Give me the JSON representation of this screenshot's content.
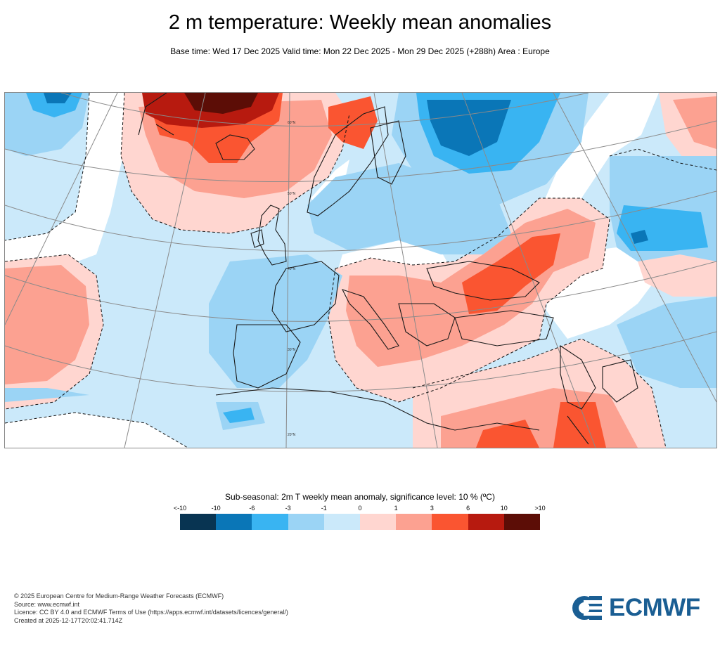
{
  "title": "2 m temperature: Weekly mean anomalies",
  "subtitle": "Base time: Wed 17 Dec 2025 Valid time: Mon 22 Dec 2025 - Mon 29 Dec 2025 (+288h) Area : Europe",
  "map": {
    "graticule_labels": [
      "60°N",
      "50°N",
      "40°N",
      "30°N",
      "20°N"
    ]
  },
  "legend": {
    "title": "Sub-seasonal: 2m T weekly mean anomaly, significance level: 10 % (ºC)",
    "labels": [
      "<-10",
      "-10",
      "-6",
      "-3",
      "-1",
      "0",
      "1",
      "3",
      "6",
      "10",
      ">10"
    ],
    "colors": [
      "#083452",
      "#0a76b7",
      "#39b4f2",
      "#9bd4f5",
      "#cbe9fa",
      "#ffd6d0",
      "#fca191",
      "#fa5531",
      "#b71a0f",
      "#5c0d06"
    ]
  },
  "footer": {
    "copyright": "© 2025 European Centre for Medium-Range Weather Forecasts (ECMWF)",
    "source": "Source: www.ecmwf.int",
    "licence": "Licence: CC BY 4.0 and ECMWF Terms of Use (https://apps.ecmwf.int/datasets/licences/general/)",
    "created": "Created at 2025-12-17T20:02:41.714Z"
  },
  "logo": {
    "text": "ECMWF"
  }
}
